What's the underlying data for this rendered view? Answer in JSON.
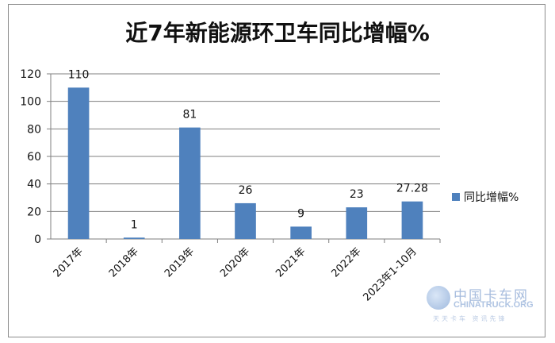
{
  "chart_data": {
    "type": "bar",
    "title": "近7年新能源环卫车同比增幅%",
    "categories": [
      "2017年",
      "2018年",
      "2019年",
      "2020年",
      "2021年",
      "2022年",
      "2023年1-10月"
    ],
    "series": [
      {
        "name": "同比增幅%",
        "values": [
          110,
          1,
          81,
          26,
          9,
          23,
          27.28
        ]
      }
    ],
    "data_labels": [
      "110",
      "1",
      "81",
      "26",
      "9",
      "23",
      "27.28"
    ],
    "y_ticks": [
      "0",
      "20",
      "40",
      "60",
      "80",
      "100",
      "120"
    ],
    "ylim": [
      0,
      120
    ],
    "xlabel": "",
    "ylabel": "",
    "grid": true,
    "legend_position": "right",
    "bar_color": "#4f81bd"
  },
  "watermark": {
    "brand_cn": "中国卡车网",
    "brand_en": "CHINATRUCK.ORG",
    "tagline": "天天卡车 资讯先锋"
  }
}
